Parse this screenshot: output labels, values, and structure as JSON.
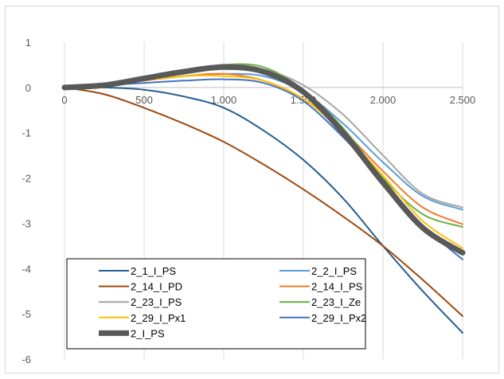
{
  "chart_data": {
    "type": "line",
    "title": "",
    "xlabel": "",
    "ylabel": "",
    "xlim": [
      0,
      2500
    ],
    "ylim": [
      -6,
      1
    ],
    "x_ticks": [
      0,
      500,
      1000,
      1500,
      2000,
      2500
    ],
    "x_tick_labels": [
      "0",
      "500",
      "1.000",
      "1.500",
      "2.000",
      "2.500"
    ],
    "y_ticks": [
      1,
      0,
      -1,
      -2,
      -3,
      -4,
      -5,
      -6
    ],
    "y_tick_labels": [
      "1",
      "0",
      "-1",
      "-2",
      "-3",
      "-4",
      "-5",
      "-6"
    ],
    "grid": "vertical",
    "legend": "bottom-left",
    "series": [
      {
        "name": "2_1_I_PS",
        "color": "#255e91",
        "width": 2,
        "points": [
          [
            0,
            0
          ],
          [
            250,
            0
          ],
          [
            500,
            -0.05
          ],
          [
            750,
            -0.2
          ],
          [
            1000,
            -0.45
          ],
          [
            1250,
            -0.95
          ],
          [
            1500,
            -1.6
          ],
          [
            1750,
            -2.45
          ],
          [
            2000,
            -3.5
          ],
          [
            2250,
            -4.5
          ],
          [
            2500,
            -5.42
          ]
        ]
      },
      {
        "name": "2_2_I_PS",
        "color": "#5b9bd5",
        "width": 2,
        "points": [
          [
            0,
            0
          ],
          [
            250,
            0.05
          ],
          [
            500,
            0.15
          ],
          [
            750,
            0.25
          ],
          [
            1000,
            0.3
          ],
          [
            1250,
            0.25
          ],
          [
            1500,
            -0.1
          ],
          [
            1750,
            -0.8
          ],
          [
            2000,
            -1.65
          ],
          [
            2250,
            -2.4
          ],
          [
            2500,
            -2.7
          ]
        ]
      },
      {
        "name": "2_14_I_PD",
        "color": "#9e480e",
        "width": 2,
        "points": [
          [
            0,
            0
          ],
          [
            250,
            -0.15
          ],
          [
            500,
            -0.45
          ],
          [
            750,
            -0.8
          ],
          [
            1000,
            -1.2
          ],
          [
            1250,
            -1.7
          ],
          [
            1500,
            -2.25
          ],
          [
            1750,
            -2.85
          ],
          [
            2000,
            -3.5
          ],
          [
            2250,
            -4.25
          ],
          [
            2500,
            -5.05
          ]
        ]
      },
      {
        "name": "2_14_I_PS",
        "color": "#ed7d31",
        "width": 2,
        "points": [
          [
            0,
            0
          ],
          [
            250,
            0.05
          ],
          [
            500,
            0.15
          ],
          [
            750,
            0.25
          ],
          [
            1000,
            0.3
          ],
          [
            1250,
            0.15
          ],
          [
            1500,
            -0.25
          ],
          [
            1750,
            -0.95
          ],
          [
            2000,
            -1.85
          ],
          [
            2250,
            -2.65
          ],
          [
            2500,
            -3.02
          ]
        ]
      },
      {
        "name": "2_23_I_PS",
        "color": "#a5a5a5",
        "width": 2,
        "points": [
          [
            0,
            0
          ],
          [
            250,
            0.05
          ],
          [
            500,
            0.2
          ],
          [
            750,
            0.35
          ],
          [
            1000,
            0.5
          ],
          [
            1250,
            0.4
          ],
          [
            1500,
            0.05
          ],
          [
            1750,
            -0.6
          ],
          [
            2000,
            -1.5
          ],
          [
            2250,
            -2.35
          ],
          [
            2500,
            -2.65
          ]
        ]
      },
      {
        "name": "2_23_I_Ze",
        "color": "#70ad47",
        "width": 2,
        "points": [
          [
            0,
            0
          ],
          [
            250,
            0.05
          ],
          [
            500,
            0.2
          ],
          [
            750,
            0.35
          ],
          [
            1000,
            0.5
          ],
          [
            1250,
            0.45
          ],
          [
            1500,
            -0.05
          ],
          [
            1750,
            -0.9
          ],
          [
            2000,
            -2.0
          ],
          [
            2250,
            -2.8
          ],
          [
            2500,
            -3.08
          ]
        ]
      },
      {
        "name": "2_29_I_Px1",
        "color": "#ffc000",
        "width": 2,
        "points": [
          [
            0,
            0
          ],
          [
            250,
            0.05
          ],
          [
            500,
            0.15
          ],
          [
            750,
            0.25
          ],
          [
            1000,
            0.25
          ],
          [
            1250,
            0.15
          ],
          [
            1500,
            -0.25
          ],
          [
            1750,
            -1.0
          ],
          [
            2000,
            -1.95
          ],
          [
            2250,
            -2.95
          ],
          [
            2500,
            -3.55
          ]
        ]
      },
      {
        "name": "2_29_I_Px2",
        "color": "#4472c4",
        "width": 2,
        "points": [
          [
            0,
            0
          ],
          [
            250,
            0.05
          ],
          [
            500,
            0.1
          ],
          [
            750,
            0.15
          ],
          [
            1000,
            0.18
          ],
          [
            1250,
            0.1
          ],
          [
            1500,
            -0.3
          ],
          [
            1750,
            -1.1
          ],
          [
            2000,
            -2.05
          ],
          [
            2250,
            -3.05
          ],
          [
            2500,
            -3.8
          ]
        ]
      },
      {
        "name": "2_I_PS",
        "color": "#595959",
        "width": 7,
        "points": [
          [
            0,
            0
          ],
          [
            250,
            0.05
          ],
          [
            500,
            0.2
          ],
          [
            750,
            0.35
          ],
          [
            1000,
            0.45
          ],
          [
            1250,
            0.35
          ],
          [
            1500,
            -0.1
          ],
          [
            1750,
            -1.0
          ],
          [
            2000,
            -2.1
          ],
          [
            2250,
            -3.1
          ],
          [
            2500,
            -3.65
          ]
        ]
      }
    ]
  }
}
